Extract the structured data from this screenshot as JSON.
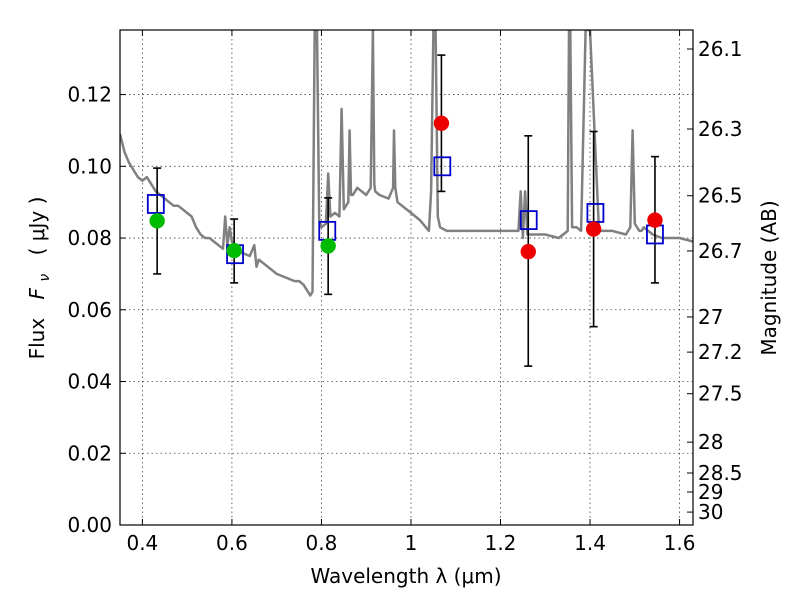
{
  "chart_data": {
    "type": "scatter",
    "xlabel": "Wavelength  λ (μm)",
    "ylabel_text": "Flux",
    "ylabel_symbol": "F",
    "ylabel_symbol_sub": "ν",
    "ylabel_units": "( μJy )",
    "y2label": "Magnitude (AB)",
    "xlim": [
      0.35,
      1.63
    ],
    "ylim": [
      0.0,
      0.138
    ],
    "grid": true,
    "x_ticks": [
      0.4,
      0.6,
      0.8,
      1.0,
      1.2,
      1.4,
      1.6
    ],
    "x_tick_labels": [
      "0.4",
      "0.6",
      "0.8",
      "1",
      "1.2",
      "1.4",
      "1.6"
    ],
    "y_ticks": [
      0.0,
      0.02,
      0.04,
      0.06,
      0.08,
      0.1,
      0.12
    ],
    "y_tick_labels": [
      "0.00",
      "0.02",
      "0.04",
      "0.06",
      "0.08",
      "0.10",
      "0.12"
    ],
    "magnitude_ticks": [
      {
        "label": "26.1",
        "flux": 0.1327
      },
      {
        "label": "26.3",
        "flux": 0.1104
      },
      {
        "label": "26.5",
        "flux": 0.0918
      },
      {
        "label": "26.7",
        "flux": 0.0764
      },
      {
        "label": "27",
        "flux": 0.058
      },
      {
        "label": "27.2",
        "flux": 0.0482
      },
      {
        "label": "27.5",
        "flux": 0.0366
      },
      {
        "label": "28",
        "flux": 0.0231
      },
      {
        "label": "28.5",
        "flux": 0.0145
      },
      {
        "label": "29",
        "flux": 0.0092
      },
      {
        "label": "30",
        "flux": 0.0036
      }
    ],
    "colors": {
      "template": "#808080",
      "model": "#0000cc",
      "green": "#00bb00",
      "red": "#ee0000",
      "errorbar": "#000000"
    },
    "series": [
      {
        "marker": "line",
        "color": "#808080",
        "x": [
          0.35,
          0.36,
          0.37,
          0.38,
          0.39,
          0.4,
          0.41,
          0.42,
          0.43,
          0.44,
          0.45,
          0.46,
          0.47,
          0.48,
          0.49,
          0.5,
          0.51,
          0.52,
          0.53,
          0.54,
          0.55,
          0.56,
          0.57,
          0.58,
          0.585,
          0.59,
          0.595,
          0.6,
          0.62,
          0.64,
          0.65,
          0.655,
          0.66,
          0.68,
          0.7,
          0.72,
          0.74,
          0.75,
          0.76,
          0.77,
          0.775,
          0.78,
          0.785,
          0.79,
          0.795,
          0.8,
          0.81,
          0.815,
          0.82,
          0.83,
          0.84,
          0.845,
          0.85,
          0.86,
          0.863,
          0.866,
          0.87,
          0.88,
          0.9,
          0.91,
          0.915,
          0.918,
          0.92,
          0.93,
          0.95,
          0.96,
          0.962,
          0.965,
          0.97,
          1.0,
          1.02,
          1.04,
          1.045,
          1.05,
          1.055,
          1.06,
          1.065,
          1.08,
          1.1,
          1.15,
          1.2,
          1.24,
          1.245,
          1.25,
          1.255,
          1.26,
          1.3,
          1.33,
          1.34,
          1.35,
          1.353,
          1.356,
          1.36,
          1.37,
          1.38,
          1.39,
          1.4,
          1.42,
          1.45,
          1.48,
          1.49,
          1.495,
          1.5,
          1.51,
          1.515,
          1.52,
          1.54,
          1.56,
          1.58,
          1.6,
          1.63
        ],
        "y": [
          0.109,
          0.104,
          0.101,
          0.099,
          0.097,
          0.096,
          0.097,
          0.095,
          0.093,
          0.092,
          0.091,
          0.09,
          0.089,
          0.089,
          0.088,
          0.087,
          0.086,
          0.083,
          0.081,
          0.08,
          0.08,
          0.079,
          0.078,
          0.077,
          0.086,
          0.078,
          0.083,
          0.079,
          0.076,
          0.075,
          0.078,
          0.072,
          0.074,
          0.072,
          0.07,
          0.069,
          0.068,
          0.068,
          0.067,
          0.065,
          0.064,
          0.065,
          0.138,
          0.138,
          0.085,
          0.083,
          0.084,
          0.098,
          0.086,
          0.087,
          0.086,
          0.116,
          0.088,
          0.09,
          0.11,
          0.092,
          0.092,
          0.094,
          0.092,
          0.094,
          0.138,
          0.095,
          0.093,
          0.092,
          0.091,
          0.094,
          0.11,
          0.094,
          0.09,
          0.087,
          0.085,
          0.082,
          0.093,
          0.138,
          0.138,
          0.086,
          0.083,
          0.082,
          0.082,
          0.082,
          0.082,
          0.082,
          0.093,
          0.08,
          0.093,
          0.081,
          0.081,
          0.08,
          0.081,
          0.082,
          0.138,
          0.138,
          0.083,
          0.083,
          0.082,
          0.138,
          0.138,
          0.082,
          0.082,
          0.081,
          0.083,
          0.11,
          0.084,
          0.082,
          0.082,
          0.083,
          0.081,
          0.08,
          0.08,
          0.08,
          0.079
        ]
      },
      {
        "marker": "open-square",
        "color": "#0000cc",
        "x": [
          0.43,
          0.607,
          0.813,
          1.07,
          1.263,
          1.412,
          1.545
        ],
        "y": [
          0.0895,
          0.0755,
          0.082,
          0.1,
          0.085,
          0.087,
          0.081
        ]
      },
      {
        "marker": "filled-circle",
        "color": "#00bb00",
        "x": [
          0.433,
          0.605,
          0.815
        ],
        "y": [
          0.0848,
          0.0765,
          0.0778
        ],
        "yerr_low": [
          0.07,
          0.0675,
          0.0643
        ],
        "yerr_high": [
          0.0995,
          0.0853,
          0.0912
        ]
      },
      {
        "marker": "filled-circle",
        "color": "#ee0000",
        "x": [
          1.068,
          1.262,
          1.408,
          1.545
        ],
        "y": [
          0.112,
          0.0762,
          0.0825,
          0.085
        ],
        "yerr_low": [
          0.093,
          0.0443,
          0.0553,
          0.0675
        ],
        "yerr_high": [
          0.131,
          0.1085,
          0.1097,
          0.1027
        ]
      }
    ]
  }
}
